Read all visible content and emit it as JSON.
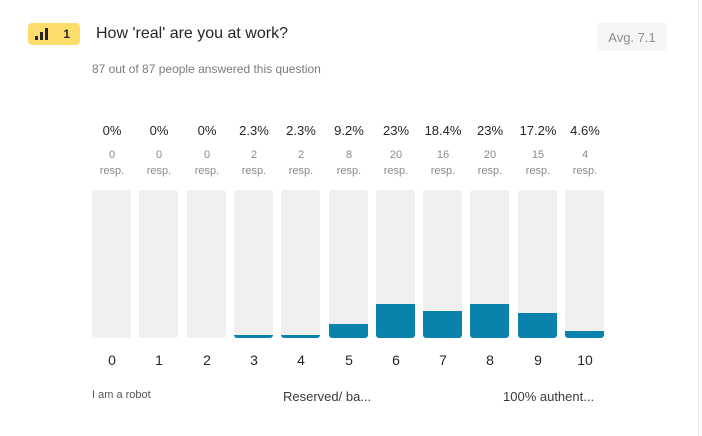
{
  "question": {
    "number": "1",
    "title": "How 'real' are you at work?",
    "average": "Avg. 7.1",
    "answered": "87 out of 87 people answered this question",
    "icon": "opinion-scale-icon"
  },
  "scale_labels": {
    "left": "I am a robot",
    "middle": "Reserved/ ba...",
    "right": "100% authent..."
  },
  "colors": {
    "accent_badge": "#fcdd6b",
    "bar_fill": "#0a82ab",
    "bar_track": "#efefef"
  },
  "chart_data": {
    "type": "bar",
    "categories": [
      "0",
      "1",
      "2",
      "3",
      "4",
      "5",
      "6",
      "7",
      "8",
      "9",
      "10"
    ],
    "percent_labels": [
      "0%",
      "0%",
      "0%",
      "2.3%",
      "2.3%",
      "9.2%",
      "23%",
      "18.4%",
      "23%",
      "17.2%",
      "4.6%"
    ],
    "responses": [
      "0",
      "0",
      "0",
      "2",
      "2",
      "8",
      "20",
      "16",
      "20",
      "15",
      "4"
    ],
    "resp_unit": "resp.",
    "values": [
      0,
      0,
      0,
      2.3,
      2.3,
      9.2,
      23,
      18.4,
      23,
      17.2,
      4.6
    ],
    "ylim": [
      0,
      100
    ]
  }
}
